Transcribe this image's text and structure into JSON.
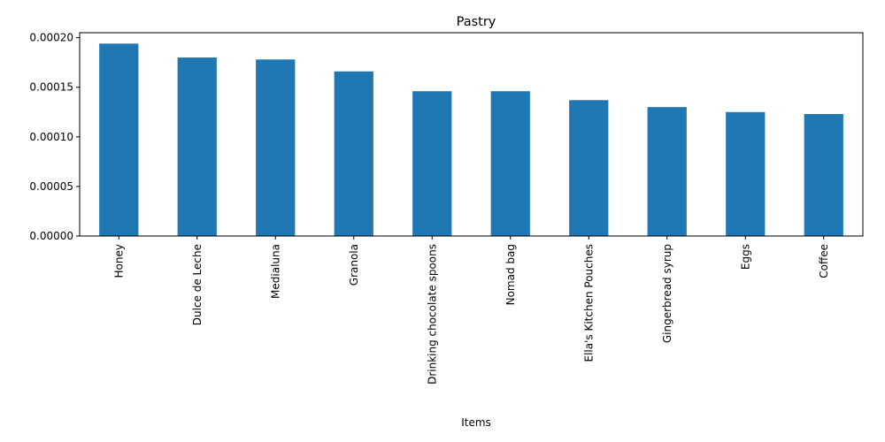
{
  "chart_data": {
    "type": "bar",
    "title": "Pastry",
    "xlabel": "Items",
    "ylabel": "",
    "categories": [
      "Honey",
      "Dulce de Leche",
      "Medialuna",
      "Granola",
      "Drinking chocolate spoons",
      "Nomad bag",
      "Ella's Kitchen Pouches",
      "Gingerbread syrup",
      "Eggs",
      "Coffee"
    ],
    "values": [
      0.000194,
      0.00018,
      0.000178,
      0.000166,
      0.000146,
      0.000146,
      0.000137,
      0.00013,
      0.000125,
      0.000123
    ],
    "ylim": [
      0,
      0.000205
    ],
    "yticks": [
      "0.00000",
      "0.00005",
      "0.00010",
      "0.00015",
      "0.00020"
    ],
    "ytick_values": [
      0,
      5e-05,
      0.0001,
      0.00015,
      0.0002
    ],
    "bar_color": "#1f77b4",
    "grid": false,
    "legend": false
  }
}
